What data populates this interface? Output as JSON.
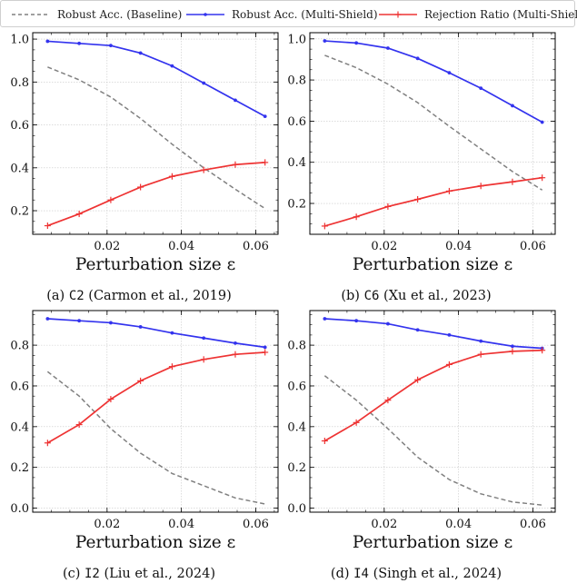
{
  "legend": {
    "items": [
      {
        "label": "Robust Acc. (Baseline)",
        "color": "#808080",
        "style": "dashed"
      },
      {
        "label": "Robust Acc. (Multi-Shield)",
        "color": "#3333ee",
        "style": "solid-dot"
      },
      {
        "label": "Rejection Ratio (Multi-Shield)",
        "color": "#ee3333",
        "style": "solid-plus"
      }
    ]
  },
  "chart_data": [
    {
      "type": "line",
      "caption": {
        "prefix": "(a) ",
        "code": "C2",
        "suffix": " (Carmon et al., 2019)"
      },
      "xlabel": "Perturbation size ε",
      "ylabel": "",
      "xlim": [
        0.0,
        0.066
      ],
      "ylim": [
        0.09,
        1.03
      ],
      "xticks": [
        0.02,
        0.04,
        0.06
      ],
      "xtick_labels": [
        "0.02",
        "0.04",
        "0.06"
      ],
      "yticks": [
        0.2,
        0.4,
        0.6,
        0.8,
        1.0
      ],
      "ytick_labels": [
        "0.2",
        "0.4",
        "0.6",
        "0.8",
        "1.0"
      ],
      "grid": true,
      "x": [
        0.004,
        0.0125,
        0.021,
        0.029,
        0.0375,
        0.046,
        0.0545,
        0.0625
      ],
      "series": [
        {
          "name": "Robust Acc. (Baseline)",
          "color": "#808080",
          "style": "dashed",
          "values": [
            0.87,
            0.81,
            0.73,
            0.63,
            0.51,
            0.4,
            0.3,
            0.21
          ]
        },
        {
          "name": "Robust Acc. (Multi-Shield)",
          "color": "#3333ee",
          "style": "solid-dot",
          "values": [
            0.99,
            0.98,
            0.97,
            0.935,
            0.875,
            0.795,
            0.715,
            0.64
          ]
        },
        {
          "name": "Rejection Ratio (Multi-Shield)",
          "color": "#ee3333",
          "style": "solid-plus",
          "values": [
            0.13,
            0.185,
            0.25,
            0.31,
            0.36,
            0.39,
            0.415,
            0.425
          ]
        }
      ]
    },
    {
      "type": "line",
      "caption": {
        "prefix": "(b) ",
        "code": "C6",
        "suffix": " (Xu et al., 2023)"
      },
      "xlabel": "Perturbation size ε",
      "ylabel": "",
      "xlim": [
        0.0,
        0.066
      ],
      "ylim": [
        0.05,
        1.03
      ],
      "xticks": [
        0.02,
        0.04,
        0.06
      ],
      "xtick_labels": [
        "0.02",
        "0.04",
        "0.06"
      ],
      "yticks": [
        0.2,
        0.4,
        0.6,
        0.8,
        1.0
      ],
      "ytick_labels": [
        "0.2",
        "0.4",
        "0.6",
        "0.8",
        "1.0"
      ],
      "grid": true,
      "x": [
        0.004,
        0.0125,
        0.021,
        0.029,
        0.0375,
        0.046,
        0.0545,
        0.0625
      ],
      "series": [
        {
          "name": "Robust Acc. (Baseline)",
          "color": "#808080",
          "style": "dashed",
          "values": [
            0.92,
            0.86,
            0.78,
            0.69,
            0.575,
            0.465,
            0.355,
            0.265
          ]
        },
        {
          "name": "Robust Acc. (Multi-Shield)",
          "color": "#3333ee",
          "style": "solid-dot",
          "values": [
            0.99,
            0.98,
            0.955,
            0.905,
            0.835,
            0.76,
            0.675,
            0.595
          ]
        },
        {
          "name": "Rejection Ratio (Multi-Shield)",
          "color": "#ee3333",
          "style": "solid-plus",
          "values": [
            0.09,
            0.135,
            0.185,
            0.22,
            0.26,
            0.285,
            0.305,
            0.325
          ]
        }
      ]
    },
    {
      "type": "line",
      "caption": {
        "prefix": "(c) ",
        "code": "I2",
        "suffix": " (Liu et al., 2024)"
      },
      "xlabel": "Perturbation size ε",
      "ylabel": "",
      "xlim": [
        0.0,
        0.066
      ],
      "ylim": [
        -0.02,
        0.97
      ],
      "xticks": [
        0.02,
        0.04,
        0.06
      ],
      "xtick_labels": [
        "0.02",
        "0.04",
        "0.06"
      ],
      "yticks": [
        0.0,
        0.2,
        0.4,
        0.6,
        0.8
      ],
      "ytick_labels": [
        "0.0",
        "0.2",
        "0.4",
        "0.6",
        "0.8"
      ],
      "grid": true,
      "x": [
        0.004,
        0.0125,
        0.021,
        0.029,
        0.0375,
        0.046,
        0.0545,
        0.0625
      ],
      "series": [
        {
          "name": "Robust Acc. (Baseline)",
          "color": "#808080",
          "style": "dashed",
          "values": [
            0.67,
            0.55,
            0.39,
            0.27,
            0.17,
            0.11,
            0.05,
            0.02
          ]
        },
        {
          "name": "Robust Acc. (Multi-Shield)",
          "color": "#3333ee",
          "style": "solid-dot",
          "values": [
            0.93,
            0.92,
            0.91,
            0.89,
            0.86,
            0.835,
            0.81,
            0.79
          ]
        },
        {
          "name": "Rejection Ratio (Multi-Shield)",
          "color": "#ee3333",
          "style": "solid-plus",
          "values": [
            0.32,
            0.41,
            0.535,
            0.625,
            0.695,
            0.73,
            0.755,
            0.765
          ]
        }
      ]
    },
    {
      "type": "line",
      "caption": {
        "prefix": "(d) ",
        "code": "I4",
        "suffix": " (Singh et al., 2024)"
      },
      "xlabel": "Perturbation size ε",
      "ylabel": "",
      "xlim": [
        0.0,
        0.066
      ],
      "ylim": [
        -0.02,
        0.97
      ],
      "xticks": [
        0.02,
        0.04,
        0.06
      ],
      "xtick_labels": [
        "0.02",
        "0.04",
        "0.06"
      ],
      "yticks": [
        0.0,
        0.2,
        0.4,
        0.6,
        0.8
      ],
      "ytick_labels": [
        "0.0",
        "0.2",
        "0.4",
        "0.6",
        "0.8"
      ],
      "grid": true,
      "x": [
        0.004,
        0.0125,
        0.021,
        0.029,
        0.0375,
        0.046,
        0.0545,
        0.0625
      ],
      "series": [
        {
          "name": "Robust Acc. (Baseline)",
          "color": "#808080",
          "style": "dashed",
          "values": [
            0.65,
            0.53,
            0.39,
            0.25,
            0.14,
            0.07,
            0.03,
            0.015
          ]
        },
        {
          "name": "Robust Acc. (Multi-Shield)",
          "color": "#3333ee",
          "style": "solid-dot",
          "values": [
            0.93,
            0.92,
            0.905,
            0.875,
            0.85,
            0.82,
            0.795,
            0.785
          ]
        },
        {
          "name": "Rejection Ratio (Multi-Shield)",
          "color": "#ee3333",
          "style": "solid-plus",
          "values": [
            0.33,
            0.42,
            0.53,
            0.63,
            0.705,
            0.755,
            0.77,
            0.775
          ]
        }
      ]
    }
  ]
}
